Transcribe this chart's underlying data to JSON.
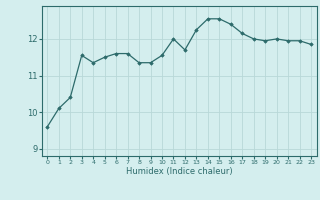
{
  "x": [
    0,
    1,
    2,
    3,
    4,
    5,
    6,
    7,
    8,
    9,
    10,
    11,
    12,
    13,
    14,
    15,
    16,
    17,
    18,
    19,
    20,
    21,
    22,
    23
  ],
  "y": [
    9.6,
    10.1,
    10.4,
    11.55,
    11.35,
    11.5,
    11.6,
    11.6,
    11.35,
    11.35,
    11.55,
    12.0,
    11.7,
    12.25,
    12.55,
    12.55,
    12.4,
    12.15,
    12.0,
    11.95,
    12.0,
    11.95,
    11.95,
    11.85
  ],
  "xlabel": "Humidex (Indice chaleur)",
  "yticks": [
    9,
    10,
    11,
    12
  ],
  "xticks": [
    0,
    1,
    2,
    3,
    4,
    5,
    6,
    7,
    8,
    9,
    10,
    11,
    12,
    13,
    14,
    15,
    16,
    17,
    18,
    19,
    20,
    21,
    22,
    23
  ],
  "ylim": [
    8.8,
    12.9
  ],
  "xlim": [
    -0.5,
    23.5
  ],
  "line_color": "#2d6b6b",
  "bg_color": "#d4eeee",
  "grid_color": "#b8d8d8",
  "tick_color": "#2d6b6b",
  "label_color": "#2d6b6b"
}
